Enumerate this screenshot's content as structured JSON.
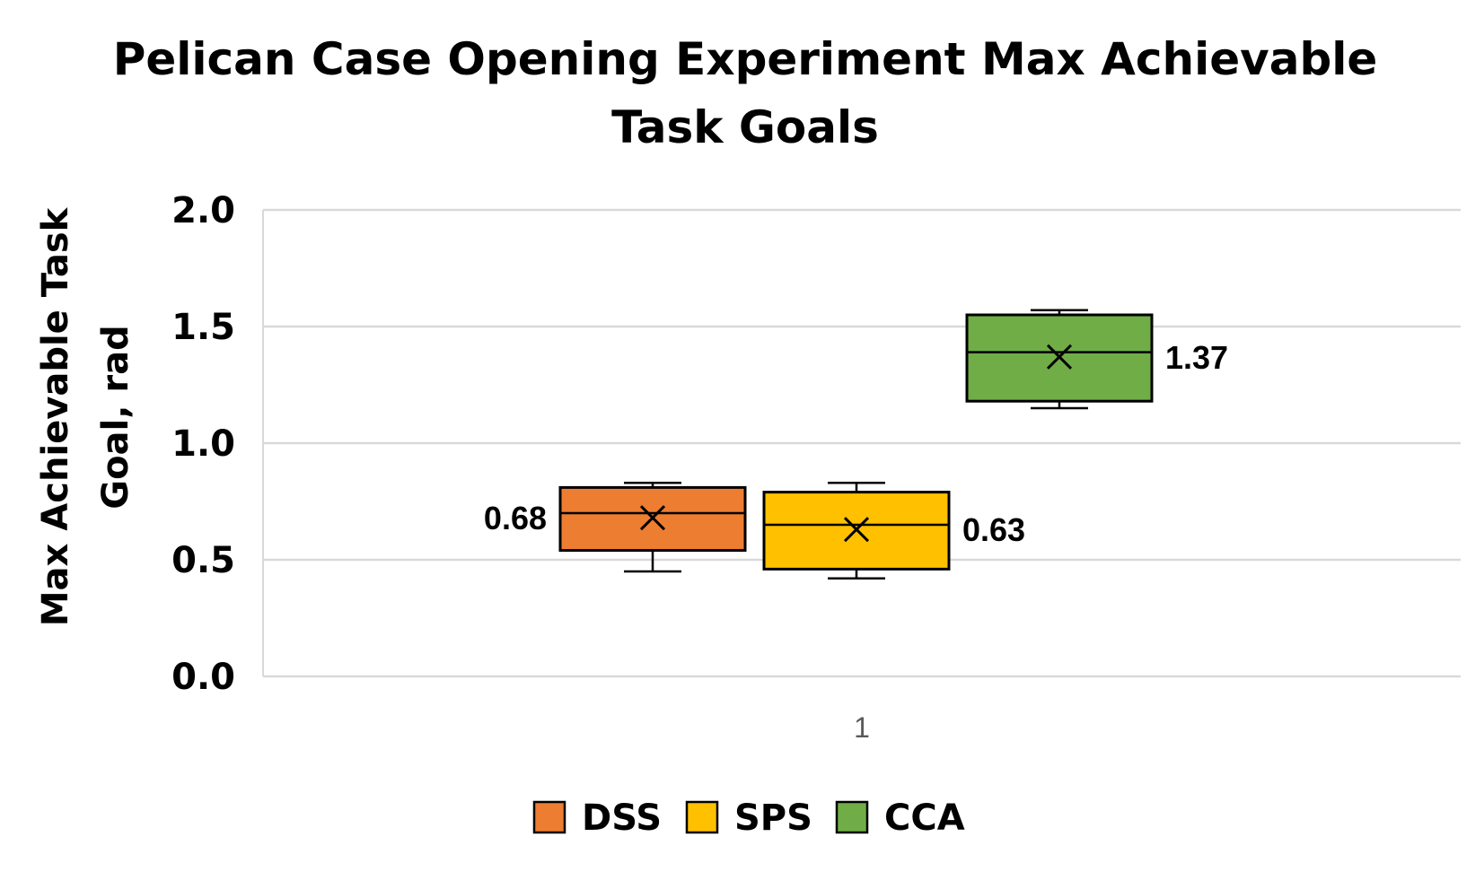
{
  "chart_data": {
    "type": "box",
    "title": "Pelican Case Opening Experiment Max Achievable Task Goals",
    "ylabel_lines": [
      "Max Achievable Task",
      "Goal, rad"
    ],
    "xlabel": "",
    "categories": [
      "1"
    ],
    "ylim": [
      0,
      2
    ],
    "yticks": [
      0,
      0.5,
      1,
      1.5,
      2
    ],
    "ytick_labels": [
      "0.0",
      "0.5",
      "1.0",
      "1.5",
      "2.0"
    ],
    "grid": true,
    "legend_position": "bottom",
    "series": [
      {
        "name": "DSS",
        "color": "#ED7D31",
        "min": 0.45,
        "q1": 0.54,
        "median": 0.7,
        "q3": 0.81,
        "max": 0.83,
        "mean": 0.68,
        "mean_label": "0.68",
        "label_side": "left"
      },
      {
        "name": "SPS",
        "color": "#FFC000",
        "min": 0.42,
        "q1": 0.46,
        "median": 0.65,
        "q3": 0.79,
        "max": 0.83,
        "mean": 0.63,
        "mean_label": "0.63",
        "label_side": "right"
      },
      {
        "name": "CCA",
        "color": "#70AD47",
        "min": 1.15,
        "q1": 1.18,
        "median": 1.39,
        "q3": 1.55,
        "max": 1.57,
        "mean": 1.37,
        "mean_label": "1.37",
        "label_side": "right"
      }
    ]
  }
}
